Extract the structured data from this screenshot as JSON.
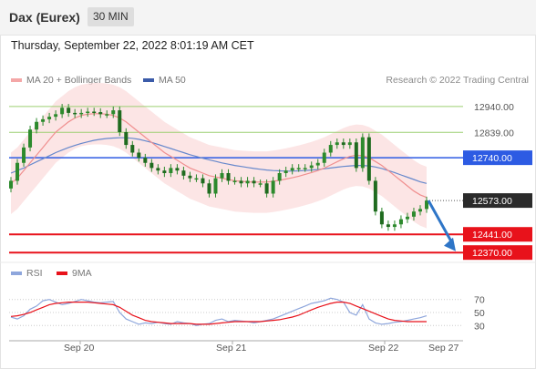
{
  "header": {
    "title": "Dax (Eurex)",
    "timeframe": "30 MIN"
  },
  "datetime": "Thursday, September 22, 2022 8:01:19 AM CET",
  "legend": {
    "ma20": "MA 20 + Bollinger Bands",
    "ma50": "MA 50",
    "credit": "Research © 2022 Trading Central"
  },
  "rsi_legend": {
    "rsi": "RSI",
    "ma": "9MA"
  },
  "colors": {
    "ma20": "#f08f8f",
    "ma50": "#6688cc",
    "bands": "#fbdcdc",
    "candle": "#2d8a2d",
    "support": "#e8121b",
    "pivot": "#2d5be3",
    "target": "#9ccf72",
    "last": "#2b2b2b",
    "arrow": "#2e75c7",
    "rsi": "#8ea6dc",
    "rsi_ma": "#e8121b"
  },
  "chart_data": {
    "type": "candlestick",
    "x_labels": [
      "Sep 20",
      "Sep 21",
      "Sep 22",
      "Sep 27"
    ],
    "y_levels": [
      {
        "value": 12940.0,
        "label": "12940.00",
        "kind": "target"
      },
      {
        "value": 12839.0,
        "label": "12839.00",
        "kind": "target"
      },
      {
        "value": 12740.0,
        "label": "12740.00",
        "kind": "pivot"
      },
      {
        "value": 12573.0,
        "label": "12573.00",
        "kind": "last"
      },
      {
        "value": 12441.0,
        "label": "12441.00",
        "kind": "support"
      },
      {
        "value": 12370.0,
        "label": "12370.00",
        "kind": "support"
      }
    ],
    "ylim": [
      12360,
      13000
    ],
    "closes": [
      12650,
      12720,
      12780,
      12850,
      12880,
      12890,
      12900,
      12910,
      12935,
      12915,
      12910,
      12915,
      12920,
      12918,
      12910,
      12910,
      12925,
      12840,
      12790,
      12760,
      12740,
      12720,
      12700,
      12690,
      12680,
      12700,
      12690,
      12670,
      12660,
      12660,
      12640,
      12600,
      12660,
      12680,
      12650,
      12650,
      12640,
      12650,
      12640,
      12640,
      12600,
      12650,
      12680,
      12690,
      12700,
      12700,
      12700,
      12710,
      12720,
      12760,
      12790,
      12800,
      12790,
      12800,
      12700,
      12820,
      12650,
      12530,
      12480,
      12470,
      12480,
      12500,
      12510,
      12530,
      12540,
      12573
    ],
    "opens": [
      12620,
      12650,
      12720,
      12780,
      12850,
      12880,
      12890,
      12900,
      12910,
      12935,
      12915,
      12910,
      12915,
      12920,
      12918,
      12910,
      12910,
      12925,
      12840,
      12790,
      12760,
      12740,
      12720,
      12700,
      12690,
      12680,
      12700,
      12690,
      12670,
      12660,
      12660,
      12640,
      12600,
      12660,
      12680,
      12650,
      12650,
      12640,
      12650,
      12640,
      12640,
      12600,
      12650,
      12680,
      12690,
      12700,
      12700,
      12700,
      12710,
      12720,
      12760,
      12790,
      12800,
      12790,
      12800,
      12700,
      12820,
      12650,
      12530,
      12480,
      12470,
      12480,
      12500,
      12510,
      12530,
      12540
    ],
    "ma20": [
      12640,
      12660,
      12690,
      12720,
      12750,
      12780,
      12810,
      12840,
      12860,
      12880,
      12895,
      12905,
      12910,
      12912,
      12912,
      12910,
      12905,
      12895,
      12880,
      12860,
      12840,
      12820,
      12800,
      12780,
      12760,
      12745,
      12730,
      12715,
      12700,
      12690,
      12680,
      12670,
      12665,
      12660,
      12655,
      12650,
      12648,
      12646,
      12645,
      12645,
      12645,
      12648,
      12652,
      12657,
      12662,
      12668,
      12675,
      12682,
      12690,
      12700,
      12712,
      12724,
      12736,
      12745,
      12750,
      12748,
      12740,
      12725,
      12710,
      12690,
      12670,
      12650,
      12630,
      12610,
      12595,
      12585
    ],
    "ma50": [
      12680,
      12690,
      12700,
      12712,
      12724,
      12736,
      12748,
      12760,
      12770,
      12780,
      12788,
      12796,
      12802,
      12808,
      12812,
      12815,
      12817,
      12818,
      12818,
      12816,
      12812,
      12806,
      12800,
      12792,
      12784,
      12776,
      12768,
      12760,
      12752,
      12745,
      12738,
      12732,
      12726,
      12720,
      12715,
      12710,
      12706,
      12702,
      12698,
      12695,
      12692,
      12690,
      12689,
      12688,
      12688,
      12689,
      12690,
      12692,
      12694,
      12697,
      12700,
      12703,
      12706,
      12708,
      12710,
      12710,
      12708,
      12704,
      12698,
      12690,
      12682,
      12673,
      12664,
      12655,
      12646,
      12640
    ],
    "rsi": [
      43,
      40,
      45,
      55,
      60,
      68,
      70,
      66,
      62,
      64,
      67,
      70,
      68,
      66,
      65,
      66,
      67,
      50,
      40,
      36,
      32,
      34,
      33,
      35,
      33,
      32,
      36,
      34,
      33,
      30,
      32,
      33,
      38,
      40,
      36,
      38,
      37,
      36,
      34,
      36,
      38,
      40,
      44,
      48,
      52,
      56,
      60,
      64,
      66,
      68,
      72,
      70,
      66,
      50,
      46,
      62,
      40,
      34,
      32,
      33,
      35,
      36,
      38,
      40,
      42,
      45
    ],
    "rsi_ma": [
      44,
      45,
      47,
      50,
      54,
      58,
      62,
      64,
      65,
      66,
      66,
      66,
      66,
      65,
      64,
      63,
      62,
      58,
      52,
      46,
      42,
      38,
      36,
      35,
      34,
      33,
      33,
      33,
      33,
      32,
      32,
      32,
      33,
      34,
      35,
      36,
      36,
      36,
      36,
      36,
      37,
      38,
      39,
      41,
      43,
      46,
      50,
      54,
      58,
      61,
      64,
      66,
      66,
      64,
      60,
      56,
      52,
      48,
      44,
      40,
      38,
      37,
      36,
      36,
      36,
      36
    ],
    "rsi_levels": [
      70,
      50,
      30
    ],
    "rsi_ylim": [
      15,
      85
    ]
  }
}
